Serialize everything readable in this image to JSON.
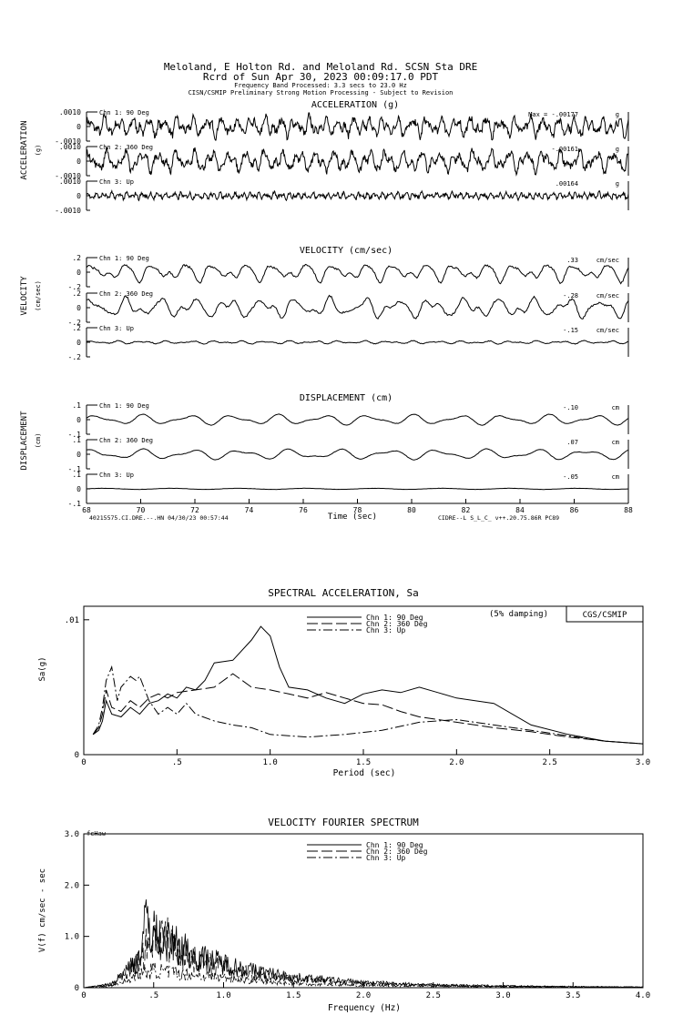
{
  "header": {
    "line1": "Meloland, E Holton Rd. and Meloland Rd.    SCSN Sta DRE",
    "line2": "Rcrd of Sun Apr 30, 2023 00:09:17.0 PDT",
    "line3": "Frequency Band Processed: 3.3 secs to 23.0 Hz",
    "line4": "CISN/CSMIP Preliminary Strong Motion Processing - Subject to Revision"
  },
  "accel": {
    "title": "ACCELERATION (g)",
    "side": "ACCELERATION",
    "unit": "(g)",
    "ticks": [
      ".0010",
      "0",
      "-.0010"
    ],
    "traces": [
      {
        "label": "Chn 1: 90 Deg",
        "max": "Max = -.00177",
        "unit": "g"
      },
      {
        "label": "Chn 2: 360 Deg",
        "max": "-.00161",
        "unit": "g"
      },
      {
        "label": "Chn 3: Up",
        "max": ".00164",
        "unit": "g"
      }
    ]
  },
  "vel": {
    "title": "VELOCITY (cm/sec)",
    "side": "VELOCITY",
    "unit": "(cm/sec)",
    "ticks": [
      ".2",
      "0",
      "-.2"
    ],
    "traces": [
      {
        "label": "Chn 1: 90 Deg",
        "max": ".33",
        "unit": "cm/sec"
      },
      {
        "label": "Chn 2: 360 Deg",
        "max": "-.28",
        "unit": "cm/sec"
      },
      {
        "label": "Chn 3: Up",
        "max": "-.15",
        "unit": "cm/sec"
      }
    ]
  },
  "disp": {
    "title": "DISPLACEMENT (cm)",
    "side": "DISPLACEMENT",
    "unit": "(cm)",
    "ticks": [
      ".1",
      "0",
      "-.1"
    ],
    "traces": [
      {
        "label": "Chn 1: 90 Deg",
        "max": "-.10",
        "unit": "cm"
      },
      {
        "label": "Chn 2: 360 Deg",
        "max": ".07",
        "unit": "cm"
      },
      {
        "label": "Chn 3: Up",
        "max": "-.05",
        "unit": "cm"
      }
    ]
  },
  "time_axis": {
    "label": "Time (sec)",
    "ticks": [
      "68",
      "70",
      "72",
      "74",
      "76",
      "78",
      "80",
      "82",
      "84",
      "86",
      "88"
    ],
    "footer_left": "40215575.CI.DRE.--.HN 04/30/23 00:57:44",
    "footer_right": "CIDRE--L  S_L_C_  v++.20.75.86R PC89"
  },
  "chart_data": [
    {
      "type": "line",
      "title": "SPECTRAL ACCELERATION, Sa",
      "xlabel": "Period (sec)",
      "ylabel": "Sa(g)",
      "xlim": [
        0,
        3.0
      ],
      "ylim": [
        0,
        0.011
      ],
      "x_ticks": [
        "0",
        ".5",
        "1.0",
        "1.5",
        "2.0",
        "2.5",
        "3.0"
      ],
      "y_ticks": [
        "0",
        ".01"
      ],
      "damping": "(5% damping)",
      "badge": "CGS/CSMIP",
      "legend_position": "top-center",
      "series": [
        {
          "name": "Chn 1: 90 Deg",
          "dash": "none",
          "x": [
            0.05,
            0.08,
            0.1,
            0.12,
            0.15,
            0.2,
            0.25,
            0.3,
            0.35,
            0.4,
            0.45,
            0.5,
            0.55,
            0.6,
            0.65,
            0.7,
            0.8,
            0.9,
            0.95,
            1.0,
            1.05,
            1.1,
            1.2,
            1.3,
            1.4,
            1.5,
            1.6,
            1.7,
            1.8,
            1.9,
            2.0,
            2.2,
            2.4,
            2.6,
            2.8,
            3.0
          ],
          "y": [
            0.0015,
            0.0018,
            0.0025,
            0.004,
            0.003,
            0.0028,
            0.0035,
            0.003,
            0.0038,
            0.004,
            0.0045,
            0.0042,
            0.005,
            0.0048,
            0.0055,
            0.0068,
            0.007,
            0.0085,
            0.0095,
            0.0088,
            0.0065,
            0.005,
            0.0048,
            0.0042,
            0.0038,
            0.0045,
            0.0048,
            0.0046,
            0.005,
            0.0046,
            0.0042,
            0.0038,
            0.0022,
            0.0015,
            0.001,
            0.0008
          ]
        },
        {
          "name": "Chn 2: 360 Deg",
          "dash": "12,4",
          "x": [
            0.05,
            0.08,
            0.1,
            0.12,
            0.15,
            0.2,
            0.25,
            0.3,
            0.35,
            0.4,
            0.45,
            0.5,
            0.6,
            0.7,
            0.8,
            0.9,
            1.0,
            1.1,
            1.2,
            1.3,
            1.4,
            1.5,
            1.6,
            1.7,
            1.8,
            2.0,
            2.2,
            2.4,
            2.6,
            2.8,
            3.0
          ],
          "y": [
            0.0015,
            0.002,
            0.003,
            0.0048,
            0.0035,
            0.0032,
            0.004,
            0.0035,
            0.0042,
            0.0045,
            0.0042,
            0.0046,
            0.0048,
            0.005,
            0.006,
            0.005,
            0.0048,
            0.0045,
            0.0042,
            0.0046,
            0.0042,
            0.0038,
            0.0037,
            0.0032,
            0.0028,
            0.0024,
            0.002,
            0.0017,
            0.0013,
            0.001,
            0.0008
          ]
        },
        {
          "name": "Chn 3: Up",
          "dash": "10,3,2,3",
          "x": [
            0.05,
            0.08,
            0.1,
            0.12,
            0.15,
            0.18,
            0.2,
            0.25,
            0.28,
            0.3,
            0.35,
            0.4,
            0.45,
            0.5,
            0.55,
            0.6,
            0.7,
            0.8,
            0.9,
            1.0,
            1.2,
            1.4,
            1.6,
            1.8,
            2.0,
            2.2,
            2.4,
            2.6,
            2.8,
            3.0
          ],
          "y": [
            0.0015,
            0.0022,
            0.0035,
            0.0055,
            0.0065,
            0.004,
            0.005,
            0.0058,
            0.0055,
            0.0058,
            0.004,
            0.003,
            0.0035,
            0.003,
            0.0038,
            0.003,
            0.0025,
            0.0022,
            0.002,
            0.0015,
            0.0013,
            0.0015,
            0.0018,
            0.0024,
            0.0026,
            0.0022,
            0.0018,
            0.0014,
            0.001,
            0.0008
          ]
        }
      ]
    },
    {
      "type": "line",
      "title": "VELOCITY FOURIER SPECTRUM",
      "xlabel": "Frequency (Hz)",
      "ylabel": "V(f) cm/sec - sec",
      "xlim": [
        0,
        4.0
      ],
      "ylim": [
        0,
        3.0
      ],
      "x_ticks": [
        "0",
        ".5",
        "1.0",
        "1.5",
        "2.0",
        "2.5",
        "3.0",
        "3.5",
        "4.0"
      ],
      "y_ticks": [
        "0",
        "1.0",
        "2.0",
        "3.0"
      ],
      "corner_label": "fcHaw",
      "legend_position": "top-center",
      "series": [
        {
          "name": "Chn 1: 90 Deg",
          "dash": "none",
          "x": [
            0.2,
            0.3,
            0.4,
            0.45,
            0.5,
            0.6,
            0.7,
            0.8,
            1.0,
            1.2,
            1.5,
            2.0,
            2.5,
            3.0,
            3.5,
            4.0
          ],
          "y": [
            0.1,
            0.5,
            0.9,
            2.0,
            1.5,
            1.3,
            1.2,
            0.9,
            0.7,
            0.5,
            0.3,
            0.15,
            0.08,
            0.05,
            0.03,
            0.02
          ]
        },
        {
          "name": "Chn 2: 360 Deg",
          "dash": "12,4",
          "x": [
            0.2,
            0.3,
            0.4,
            0.45,
            0.5,
            0.6,
            0.7,
            0.8,
            1.0,
            1.2,
            1.5,
            2.0,
            2.5,
            3.0,
            3.5,
            4.0
          ],
          "y": [
            0.1,
            0.4,
            0.8,
            1.2,
            1.6,
            1.4,
            1.0,
            0.8,
            0.6,
            0.4,
            0.25,
            0.12,
            0.07,
            0.04,
            0.03,
            0.02
          ]
        },
        {
          "name": "Chn 3: Up",
          "dash": "10,3,2,3",
          "x": [
            0.2,
            0.3,
            0.4,
            0.5,
            0.6,
            0.7,
            0.8,
            1.0,
            1.2,
            1.5,
            2.0,
            2.5,
            3.0,
            3.5,
            4.0
          ],
          "y": [
            0.05,
            0.2,
            0.4,
            0.5,
            0.45,
            0.4,
            0.35,
            0.3,
            0.2,
            0.12,
            0.06,
            0.04,
            0.03,
            0.02,
            0.01
          ]
        }
      ]
    }
  ]
}
